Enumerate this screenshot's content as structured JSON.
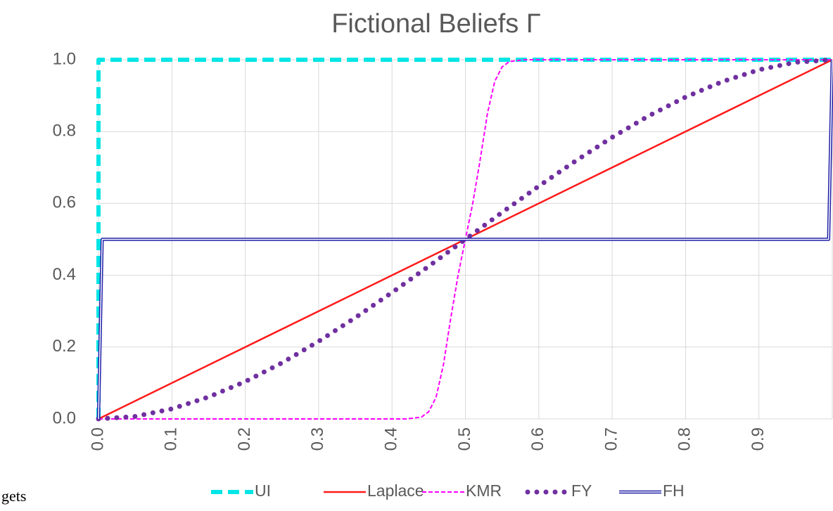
{
  "chart_data": {
    "type": "line",
    "title": "Fictional Beliefs Γ",
    "annotation": "gets",
    "xlim": [
      0,
      1
    ],
    "ylim": [
      0,
      1
    ],
    "xticks": [
      {
        "value": 0,
        "label": "0.0"
      },
      0.1,
      0.2,
      0.3,
      0.4,
      0.5,
      0.6,
      0.7,
      0.8,
      0.9
    ],
    "yticks": [
      {
        "value": 0,
        "label": "0.0"
      },
      0.2,
      0.4,
      0.6,
      0.8,
      {
        "value": 1,
        "label": "1.0"
      }
    ],
    "grid": true,
    "legend": "bottom",
    "series": [
      {
        "name": "UI",
        "color": "#00e5e5",
        "style": "dashed",
        "x": [
          0,
          0,
          1
        ],
        "values": [
          0,
          1,
          1
        ]
      },
      {
        "name": "Laplace",
        "color": "#ff1a1a",
        "style": "solid",
        "x": [
          0,
          1
        ],
        "values": [
          0,
          1
        ]
      },
      {
        "name": "KMR",
        "color": "#ff00ff",
        "style": "dashed-thin",
        "x": [
          0,
          0.42,
          0.44,
          0.45,
          0.46,
          0.47,
          0.48,
          0.49,
          0.5,
          0.51,
          0.52,
          0.53,
          0.54,
          0.55,
          0.56,
          0.58,
          1
        ],
        "values": [
          0,
          0,
          0.005,
          0.02,
          0.06,
          0.15,
          0.28,
          0.4,
          0.5,
          0.6,
          0.72,
          0.85,
          0.94,
          0.98,
          0.995,
          1,
          1
        ]
      },
      {
        "name": "FY",
        "color": "#7030a0",
        "style": "dotted",
        "x": [
          0,
          0.05,
          0.1,
          0.15,
          0.2,
          0.25,
          0.3,
          0.35,
          0.4,
          0.45,
          0.5,
          0.55,
          0.6,
          0.65,
          0.7,
          0.75,
          0.8,
          0.85,
          0.9,
          0.95,
          1
        ],
        "values": [
          0,
          0.007,
          0.028,
          0.061,
          0.104,
          0.156,
          0.216,
          0.282,
          0.352,
          0.425,
          0.5,
          0.575,
          0.648,
          0.718,
          0.784,
          0.844,
          0.896,
          0.939,
          0.972,
          0.993,
          1
        ]
      },
      {
        "name": "FH",
        "color": "#1f1fa8",
        "style": "double",
        "x": [
          0,
          0.005,
          0.995,
          1
        ],
        "values": [
          0,
          0.5,
          0.5,
          1
        ]
      }
    ]
  }
}
